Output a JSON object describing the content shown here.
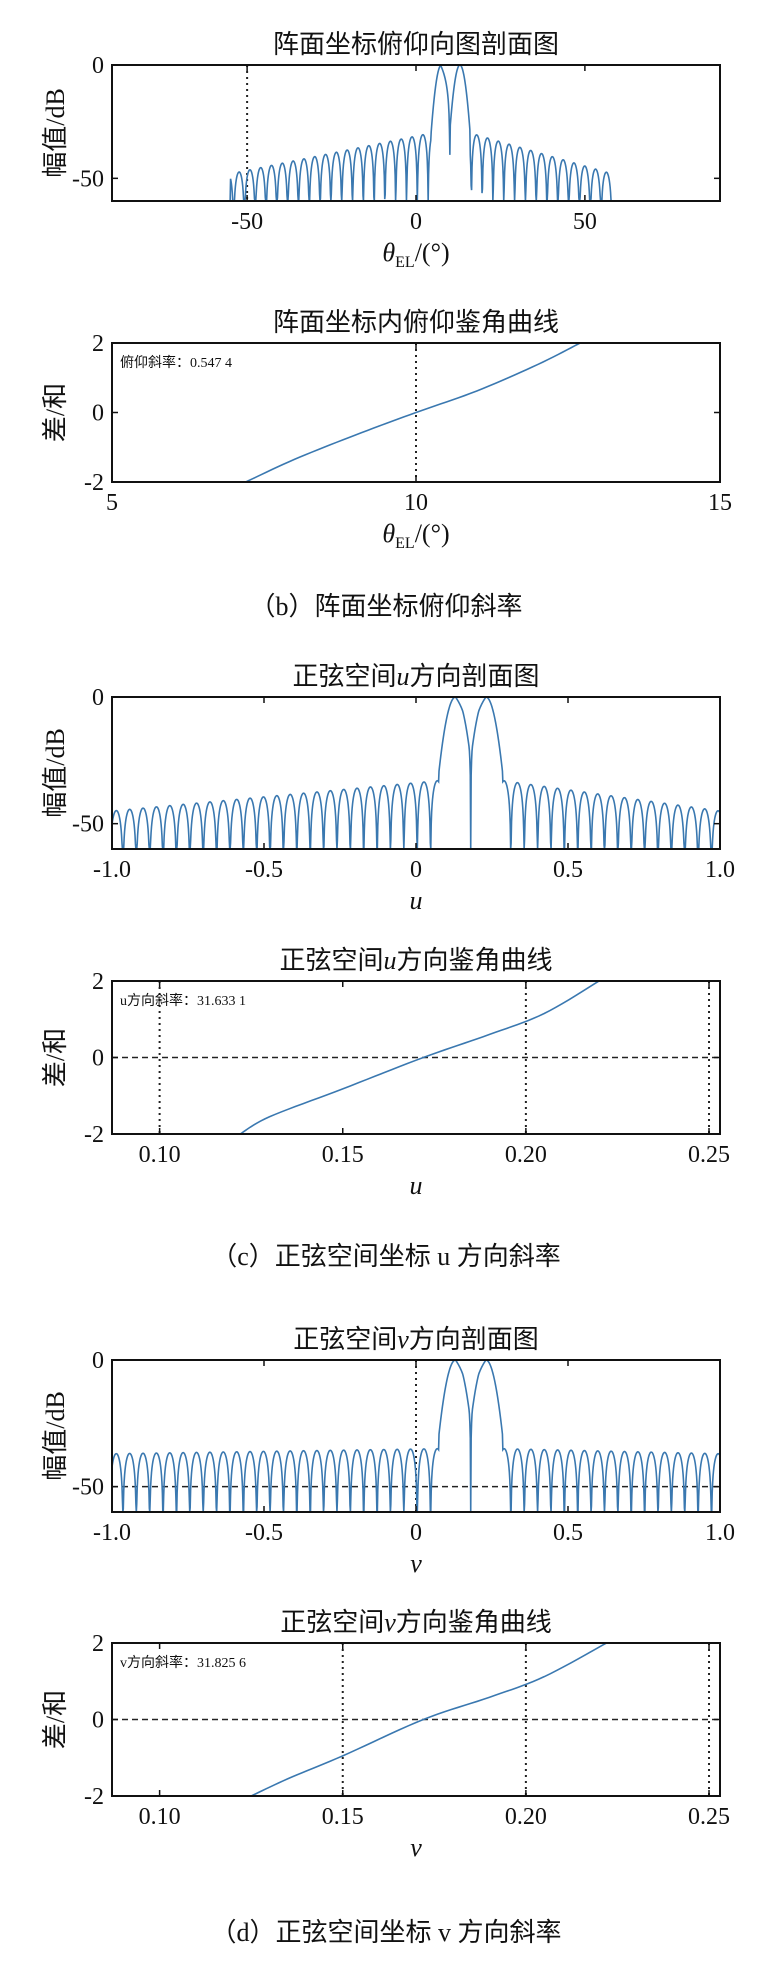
{
  "captions": {
    "b": "（b）阵面坐标俯仰斜率",
    "c": "（c）正弦空间坐标 u 方向斜率",
    "d": "（d）正弦空间坐标 v 方向斜率"
  },
  "chart_data": [
    {
      "type": "line",
      "title": "阵面坐标俯仰向图剖面图",
      "xlabel": "θEL/(°)",
      "ylabel": "幅值/dB",
      "xlim": [
        -90,
        90
      ],
      "ylim": [
        -60,
        0
      ],
      "xticks": [
        -50,
        0,
        50
      ],
      "yticks": [
        0,
        -50
      ],
      "xtick_labels": [
        "-50",
        "0",
        "50"
      ],
      "ytick_labels": [
        "0",
        "-50"
      ],
      "color": "#3a78b0",
      "vlines_dotted": [
        -50
      ],
      "pattern": {
        "main_peaks": [
          7.5,
          13
        ],
        "main_null": 10,
        "side_min": -55,
        "side_max": 58,
        "lobe_period": 3.2,
        "side_level_center": -30,
        "side_level_edge": -48
      }
    },
    {
      "type": "line",
      "title": "阵面坐标内俯仰鉴角曲线",
      "xlabel": "θEL/(°)",
      "ylabel": "差/和",
      "xlim": [
        5,
        15
      ],
      "ylim": [
        -2,
        2
      ],
      "xticks": [
        5,
        10,
        15
      ],
      "yticks": [
        2,
        0,
        -2
      ],
      "xtick_labels": [
        "5",
        "10",
        "15"
      ],
      "ytick_labels": [
        "2",
        "0",
        "-2"
      ],
      "annotation": "俯仰斜率：0.547 4",
      "vlines_dotted": [
        10
      ],
      "x": [
        7.2,
        8.0,
        9.0,
        10.0,
        11.0,
        12.0,
        12.7
      ],
      "y": [
        -2.0,
        -1.35,
        -0.65,
        0.0,
        0.62,
        1.38,
        2.0
      ]
    },
    {
      "type": "line",
      "title": "正弦空间u方向剖面图",
      "xlabel": "u",
      "ylabel": "幅值/dB",
      "xlim": [
        -1.0,
        1.0
      ],
      "ylim": [
        -60,
        0
      ],
      "xticks": [
        -1.0,
        -0.5,
        0,
        0.5,
        1.0
      ],
      "yticks": [
        0,
        -50
      ],
      "xtick_labels": [
        "-1.0",
        "-0.5",
        "0",
        "0.5",
        "1.0"
      ],
      "ytick_labels": [
        "0",
        "-50"
      ],
      "pattern": {
        "main_peaks": [
          0.13,
          0.23
        ],
        "main_null": 0.18,
        "side_min": -1.0,
        "side_max": 1.0,
        "lobe_period": 0.044,
        "side_level_center": -33,
        "side_level_edge": -45
      }
    },
    {
      "type": "line",
      "title": "正弦空间u方向鉴角曲线",
      "xlabel": "u",
      "ylabel": "差/和",
      "xlim": [
        0.087,
        0.253
      ],
      "ylim": [
        -2,
        2
      ],
      "xticks": [
        0.1,
        0.15,
        0.2,
        0.25
      ],
      "yticks": [
        2,
        0,
        -2
      ],
      "xtick_labels": [
        "0.10",
        "0.15",
        "0.20",
        "0.25"
      ],
      "ytick_labels": [
        "2",
        "0",
        "-2"
      ],
      "annotation": "u方向斜率：31.633 1",
      "vlines_dotted": [
        0.1,
        0.2,
        0.25
      ],
      "hline_dashed": 0,
      "x": [
        0.122,
        0.13,
        0.15,
        0.172,
        0.19,
        0.205,
        0.22
      ],
      "y": [
        -2.0,
        -1.55,
        -0.82,
        0.0,
        0.6,
        1.15,
        2.0
      ]
    },
    {
      "type": "line",
      "title": "正弦空间v方向剖面图",
      "xlabel": "v",
      "ylabel": "幅值/dB",
      "xlim": [
        -1.0,
        1.0
      ],
      "ylim": [
        -60,
        0
      ],
      "xticks": [
        -1.0,
        -0.5,
        0,
        0.5,
        1.0
      ],
      "yticks": [
        0,
        -50
      ],
      "xtick_labels": [
        "-1.0",
        "-0.5",
        "0",
        "0.5",
        "1.0"
      ],
      "ytick_labels": [
        "0",
        "-50"
      ],
      "hline_dashed": -50,
      "vlines_dotted": [
        0
      ],
      "pattern": {
        "main_peaks": [
          0.13,
          0.23
        ],
        "main_null": 0.18,
        "side_min": -1.0,
        "side_max": 1.0,
        "lobe_period": 0.044,
        "side_level_center": -35,
        "side_level_edge": -37
      }
    },
    {
      "type": "line",
      "title": "正弦空间v方向鉴角曲线",
      "xlabel": "v",
      "ylabel": "差/和",
      "xlim": [
        0.087,
        0.253
      ],
      "ylim": [
        -2,
        2
      ],
      "xticks": [
        0.1,
        0.15,
        0.2,
        0.25
      ],
      "yticks": [
        2,
        0,
        -2
      ],
      "xtick_labels": [
        "0.10",
        "0.15",
        "0.20",
        "0.25"
      ],
      "ytick_labels": [
        "2",
        "0",
        "-2"
      ],
      "annotation": "v方向斜率：31.825 6",
      "vlines_dotted": [
        0.15,
        0.2,
        0.25
      ],
      "hline_dashed": 0,
      "x": [
        0.125,
        0.135,
        0.15,
        0.172,
        0.19,
        0.205,
        0.222
      ],
      "y": [
        -2.0,
        -1.55,
        -0.95,
        0.0,
        0.58,
        1.12,
        2.0
      ]
    }
  ]
}
